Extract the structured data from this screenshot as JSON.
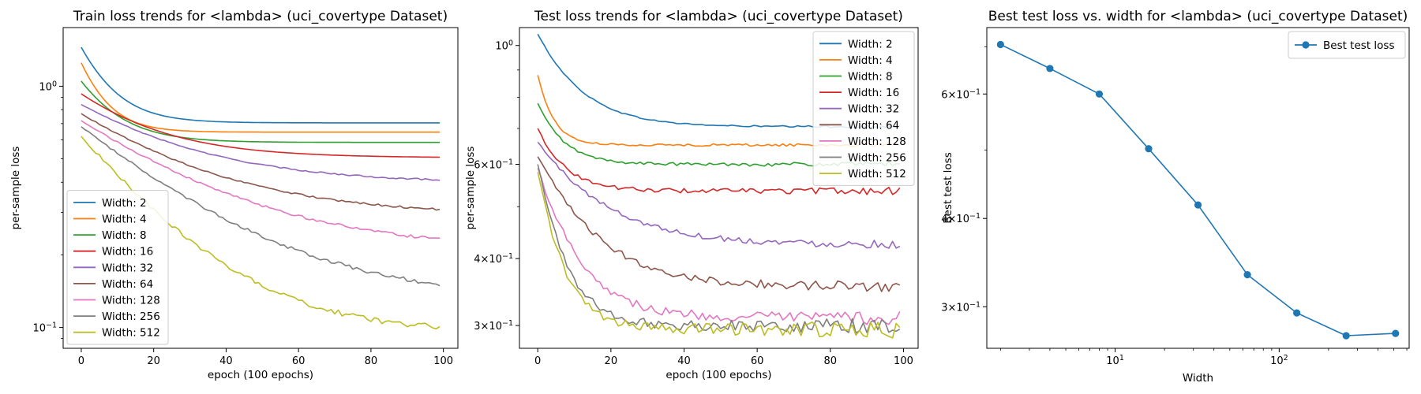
{
  "figure": {
    "background": "#ffffff"
  },
  "chart_data": [
    {
      "type": "line",
      "title": "Train loss trends for <lambda> (uci_covertype Dataset)",
      "xlabel": "epoch (100 epochs)",
      "ylabel": "per-sample loss",
      "yscale": "log",
      "xlim": [
        -5,
        104
      ],
      "ylim": [
        0.082,
        1.75
      ],
      "xticks": [
        0,
        20,
        40,
        60,
        80,
        100
      ],
      "xtick_labels": [
        "0",
        "20",
        "40",
        "60",
        "80",
        "100"
      ],
      "yticks": [
        0.1,
        1.0
      ],
      "ytick_labels": [
        "10^-1",
        "10^0"
      ],
      "legend_position": "lower-left",
      "series": [
        {
          "name": "Width: 2",
          "color": "#1f77b4",
          "start": 1.45,
          "end": 0.705,
          "k": 0.12,
          "noise": 0.0
        },
        {
          "name": "Width: 4",
          "color": "#ff7f0e",
          "start": 1.25,
          "end": 0.645,
          "k": 0.15,
          "noise": 0.0
        },
        {
          "name": "Width: 8",
          "color": "#2ca02c",
          "start": 1.05,
          "end": 0.585,
          "k": 0.1,
          "noise": 0.0
        },
        {
          "name": "Width: 16",
          "color": "#d62728",
          "start": 0.93,
          "end": 0.505,
          "k": 0.05,
          "noise": 0.0
        },
        {
          "name": "Width: 32",
          "color": "#9467bd",
          "start": 0.84,
          "end": 0.395,
          "k": 0.035,
          "noise": 0.003
        },
        {
          "name": "Width: 64",
          "color": "#8c564b",
          "start": 0.77,
          "end": 0.29,
          "k": 0.033,
          "noise": 0.004
        },
        {
          "name": "Width: 128",
          "color": "#e377c2",
          "start": 0.72,
          "end": 0.205,
          "k": 0.03,
          "noise": 0.006
        },
        {
          "name": "Width: 256",
          "color": "#7f7f7f",
          "start": 0.68,
          "end": 0.127,
          "k": 0.032,
          "noise": 0.008
        },
        {
          "name": "Width: 512",
          "color": "#bcbd22",
          "start": 0.62,
          "end": 0.094,
          "k": 0.045,
          "noise": 0.012
        }
      ]
    },
    {
      "type": "line",
      "title": "Test loss trends for <lambda> (uci_covertype Dataset)",
      "xlabel": "epoch (100 epochs)",
      "ylabel": "per-sample loss",
      "yscale": "log",
      "xlim": [
        -5,
        104
      ],
      "ylim": [
        0.272,
        1.08
      ],
      "xticks": [
        0,
        20,
        40,
        60,
        80,
        100
      ],
      "xtick_labels": [
        "0",
        "20",
        "40",
        "60",
        "80",
        "100"
      ],
      "yticks": [
        0.3,
        0.4,
        0.6,
        1.0
      ],
      "ytick_labels": [
        "3×10^-1",
        "4×10^-1",
        "6×10^-1",
        "10^0"
      ],
      "legend_position": "upper-right",
      "series": [
        {
          "name": "Width: 2",
          "color": "#1f77b4",
          "start": 1.05,
          "end": 0.705,
          "k": 0.09,
          "noise": 0.002
        },
        {
          "name": "Width: 4",
          "color": "#ff7f0e",
          "start": 0.88,
          "end": 0.652,
          "k": 0.25,
          "noise": 0.003
        },
        {
          "name": "Width: 8",
          "color": "#2ca02c",
          "start": 0.78,
          "end": 0.6,
          "k": 0.15,
          "noise": 0.004
        },
        {
          "name": "Width: 16",
          "color": "#d62728",
          "start": 0.7,
          "end": 0.535,
          "k": 0.14,
          "noise": 0.006
        },
        {
          "name": "Width: 32",
          "color": "#9467bd",
          "start": 0.66,
          "end": 0.425,
          "k": 0.06,
          "noise": 0.007
        },
        {
          "name": "Width: 64",
          "color": "#8c564b",
          "start": 0.62,
          "end": 0.355,
          "k": 0.07,
          "noise": 0.009
        },
        {
          "name": "Width: 128",
          "color": "#e377c2",
          "start": 0.59,
          "end": 0.31,
          "k": 0.1,
          "noise": 0.012
        },
        {
          "name": "Width: 256",
          "color": "#7f7f7f",
          "start": 0.6,
          "end": 0.3,
          "k": 0.15,
          "noise": 0.013
        },
        {
          "name": "Width: 512",
          "color": "#bcbd22",
          "start": 0.58,
          "end": 0.295,
          "k": 0.16,
          "noise": 0.014
        }
      ]
    },
    {
      "type": "line",
      "title": "Best test loss vs. width for <lambda> (uci_covertype Dataset)",
      "xlabel": "Width",
      "ylabel": "Best test loss",
      "xscale": "log",
      "yscale": "log",
      "xlim": [
        1.65,
        620
      ],
      "ylim": [
        0.262,
        0.745
      ],
      "xticks": [
        10,
        100
      ],
      "xtick_labels": [
        "10^1",
        "10^2"
      ],
      "yticks": [
        0.3,
        0.4,
        0.6
      ],
      "ytick_labels": [
        "3×10^-1",
        "4×10^-1",
        "6×10^-1"
      ],
      "legend_position": "upper-right",
      "series": [
        {
          "name": "Best test loss",
          "color": "#1f77b4",
          "marker": "circle",
          "x": [
            2,
            4,
            8,
            16,
            32,
            64,
            128,
            256,
            512
          ],
          "y": [
            0.705,
            0.652,
            0.6,
            0.502,
            0.418,
            0.333,
            0.294,
            0.273,
            0.275
          ]
        }
      ]
    }
  ]
}
